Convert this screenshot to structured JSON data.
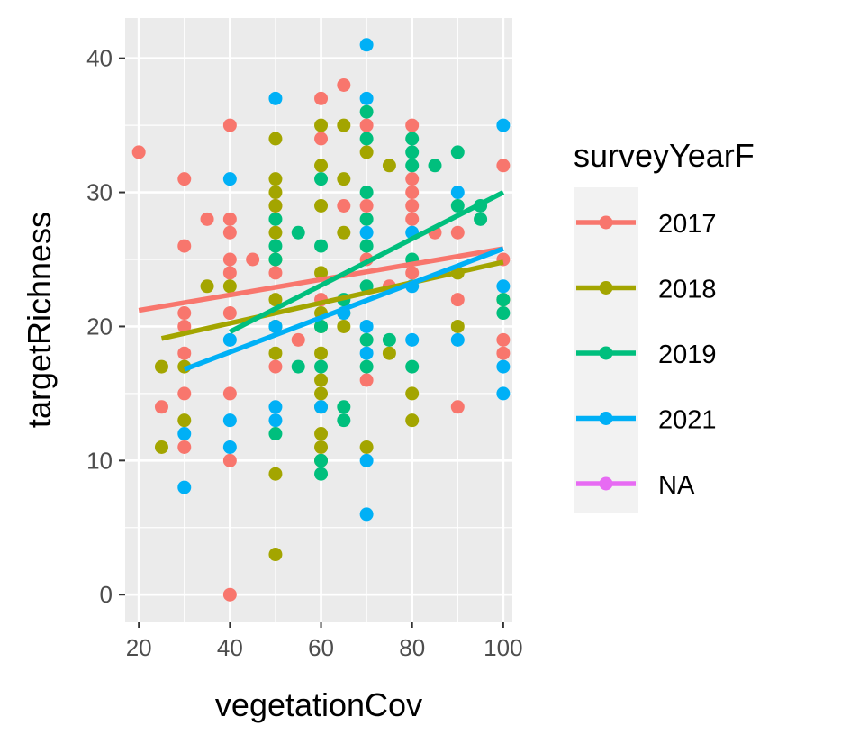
{
  "chart_data": {
    "type": "scatter",
    "title": "",
    "xlabel": "vegetationCov",
    "ylabel": "targetRichness",
    "xlim": [
      17,
      102
    ],
    "ylim": [
      -2,
      43
    ],
    "x_ticks": [
      20,
      40,
      60,
      80,
      100
    ],
    "y_ticks": [
      0,
      10,
      20,
      30,
      40
    ],
    "grid": true,
    "legend": {
      "title": "surveyYearF",
      "position": "right"
    },
    "series": [
      {
        "name": "2017",
        "color": "#F8766D",
        "points": [
          [
            20,
            33
          ],
          [
            25,
            14
          ],
          [
            30,
            31
          ],
          [
            30,
            26
          ],
          [
            30,
            21
          ],
          [
            30,
            20
          ],
          [
            30,
            18
          ],
          [
            30,
            15
          ],
          [
            30,
            11
          ],
          [
            35,
            28
          ],
          [
            40,
            35
          ],
          [
            40,
            28
          ],
          [
            40,
            27
          ],
          [
            40,
            25
          ],
          [
            40,
            24
          ],
          [
            40,
            21
          ],
          [
            40,
            15
          ],
          [
            40,
            10
          ],
          [
            40,
            0
          ],
          [
            45,
            25
          ],
          [
            50,
            29
          ],
          [
            50,
            24
          ],
          [
            50,
            17
          ],
          [
            55,
            19
          ],
          [
            60,
            37
          ],
          [
            60,
            34
          ],
          [
            60,
            22
          ],
          [
            65,
            38
          ],
          [
            65,
            29
          ],
          [
            70,
            35
          ],
          [
            70,
            29
          ],
          [
            70,
            25
          ],
          [
            70,
            16
          ],
          [
            75,
            23
          ],
          [
            80,
            35
          ],
          [
            80,
            31
          ],
          [
            80,
            30
          ],
          [
            80,
            29
          ],
          [
            80,
            28
          ],
          [
            80,
            24
          ],
          [
            85,
            27
          ],
          [
            90,
            27
          ],
          [
            90,
            22
          ],
          [
            90,
            14
          ],
          [
            100,
            32
          ],
          [
            100,
            25
          ],
          [
            100,
            19
          ],
          [
            100,
            18
          ]
        ],
        "fit": [
          [
            20,
            21.2
          ],
          [
            100,
            25.8
          ]
        ]
      },
      {
        "name": "2018",
        "color": "#A3A500",
        "points": [
          [
            25,
            17
          ],
          [
            25,
            11
          ],
          [
            30,
            17
          ],
          [
            30,
            13
          ],
          [
            35,
            23
          ],
          [
            40,
            23
          ],
          [
            50,
            34
          ],
          [
            50,
            31
          ],
          [
            50,
            30
          ],
          [
            50,
            29
          ],
          [
            50,
            27
          ],
          [
            50,
            25
          ],
          [
            50,
            22
          ],
          [
            50,
            20
          ],
          [
            50,
            18
          ],
          [
            50,
            9
          ],
          [
            50,
            3
          ],
          [
            60,
            35
          ],
          [
            60,
            32
          ],
          [
            60,
            29
          ],
          [
            60,
            24
          ],
          [
            60,
            21
          ],
          [
            60,
            20
          ],
          [
            60,
            18
          ],
          [
            60,
            16
          ],
          [
            60,
            15
          ],
          [
            60,
            14
          ],
          [
            60,
            12
          ],
          [
            60,
            11
          ],
          [
            60,
            10
          ],
          [
            65,
            35
          ],
          [
            65,
            31
          ],
          [
            65,
            27
          ],
          [
            65,
            21
          ],
          [
            65,
            20
          ],
          [
            70,
            33
          ],
          [
            70,
            11
          ],
          [
            75,
            32
          ],
          [
            75,
            18
          ],
          [
            80,
            15
          ],
          [
            80,
            13
          ],
          [
            90,
            24
          ],
          [
            90,
            20
          ],
          [
            100,
            22
          ]
        ],
        "fit": [
          [
            25,
            19.1
          ],
          [
            100,
            24.8
          ]
        ]
      },
      {
        "name": "2019",
        "color": "#00BF7D",
        "points": [
          [
            50,
            28
          ],
          [
            50,
            26
          ],
          [
            50,
            25
          ],
          [
            50,
            12
          ],
          [
            55,
            27
          ],
          [
            55,
            17
          ],
          [
            60,
            31
          ],
          [
            60,
            26
          ],
          [
            60,
            20
          ],
          [
            60,
            17
          ],
          [
            60,
            10
          ],
          [
            60,
            9
          ],
          [
            65,
            22
          ],
          [
            65,
            14
          ],
          [
            65,
            13
          ],
          [
            70,
            36
          ],
          [
            70,
            34
          ],
          [
            70,
            30
          ],
          [
            70,
            28
          ],
          [
            70,
            26
          ],
          [
            70,
            23
          ],
          [
            70,
            19
          ],
          [
            70,
            17
          ],
          [
            75,
            19
          ],
          [
            80,
            34
          ],
          [
            80,
            33
          ],
          [
            80,
            32
          ],
          [
            80,
            25
          ],
          [
            80,
            17
          ],
          [
            85,
            32
          ],
          [
            90,
            33
          ],
          [
            90,
            29
          ],
          [
            95,
            29
          ],
          [
            95,
            28
          ],
          [
            100,
            22
          ],
          [
            100,
            21
          ]
        ],
        "fit": [
          [
            40,
            19.6
          ],
          [
            100,
            30.0
          ]
        ]
      },
      {
        "name": "2021",
        "color": "#00B0F6",
        "points": [
          [
            30,
            12
          ],
          [
            30,
            8
          ],
          [
            40,
            31
          ],
          [
            40,
            19
          ],
          [
            40,
            13
          ],
          [
            40,
            11
          ],
          [
            50,
            37
          ],
          [
            50,
            20
          ],
          [
            50,
            14
          ],
          [
            50,
            13
          ],
          [
            60,
            14
          ],
          [
            65,
            21
          ],
          [
            70,
            41
          ],
          [
            70,
            37
          ],
          [
            70,
            27
          ],
          [
            70,
            20
          ],
          [
            70,
            18
          ],
          [
            70,
            10
          ],
          [
            70,
            6
          ],
          [
            80,
            27
          ],
          [
            80,
            23
          ],
          [
            80,
            19
          ],
          [
            90,
            30
          ],
          [
            90,
            19
          ],
          [
            100,
            35
          ],
          [
            100,
            23
          ],
          [
            100,
            17
          ],
          [
            100,
            15
          ]
        ],
        "fit": [
          [
            30,
            16.8
          ],
          [
            100,
            25.8
          ]
        ]
      },
      {
        "name": "NA",
        "color": "#E76BF3",
        "points": [],
        "fit": []
      }
    ]
  }
}
